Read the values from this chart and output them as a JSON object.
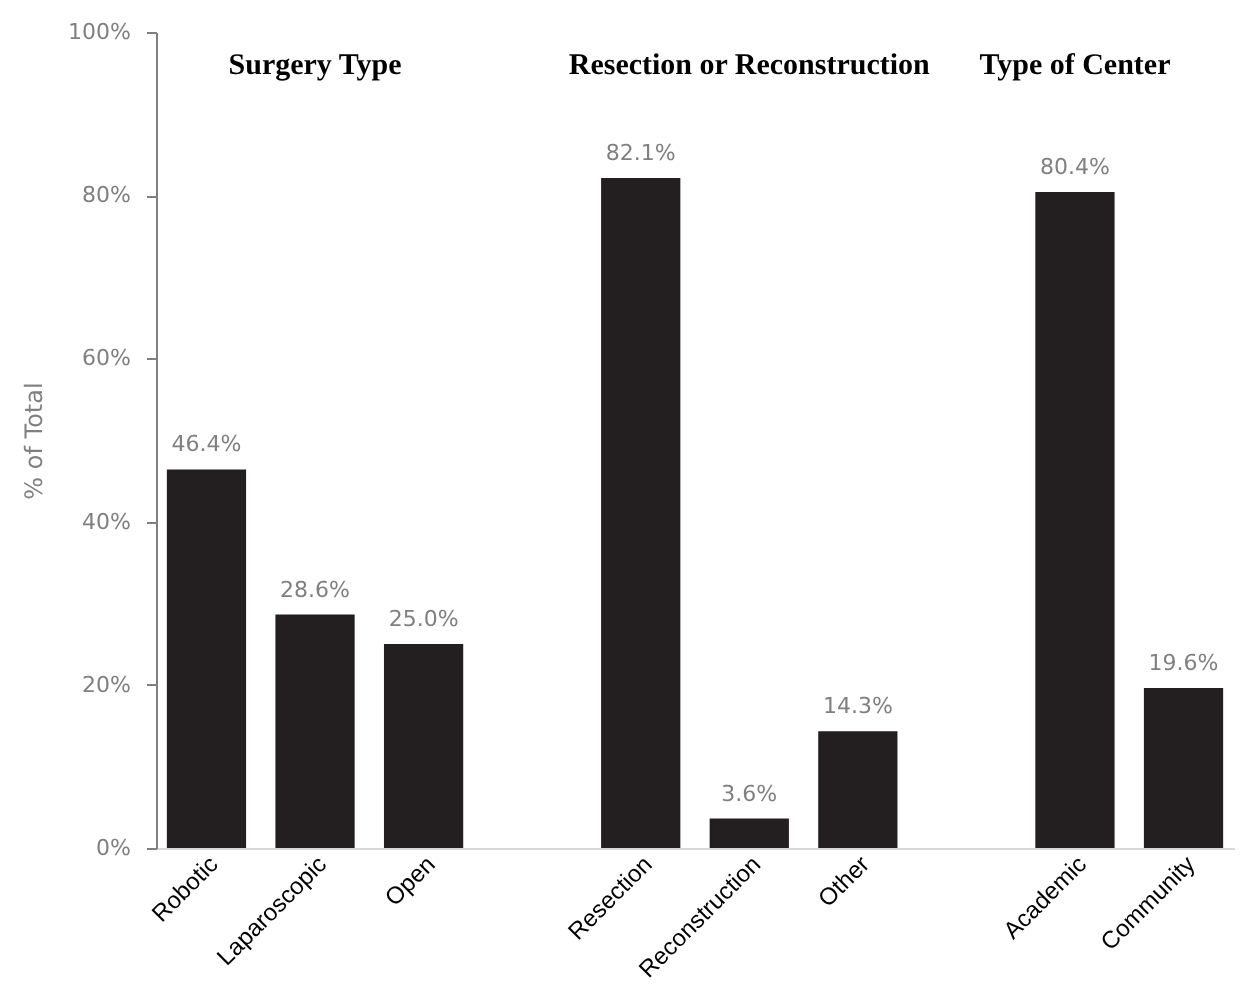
{
  "chart_data": {
    "type": "bar",
    "ylabel": "% of Total",
    "categories": [
      "Robotic",
      "Laparoscopic",
      "Open",
      null,
      "Resection",
      "Reconstruction",
      "Other",
      null,
      "Academic",
      "Community"
    ],
    "values": [
      46.4,
      28.6,
      25.0,
      null,
      82.1,
      3.6,
      14.3,
      null,
      80.4,
      19.6
    ],
    "value_labels": [
      "46.4%",
      "28.6%",
      "25.0%",
      null,
      "82.1%",
      "3.6%",
      "14.3%",
      null,
      "80.4%",
      "19.6%"
    ],
    "color": "#231f20",
    "ylim": [
      0,
      100
    ],
    "yticks": [
      {
        "value": 0,
        "label": "0%"
      },
      {
        "value": 20,
        "label": "20%"
      },
      {
        "value": 40,
        "label": "40%"
      },
      {
        "value": 60,
        "label": "60%"
      },
      {
        "value": 80,
        "label": "80%"
      },
      {
        "value": 100,
        "label": "100%"
      }
    ],
    "annotations": [
      "Surgery Type",
      "Resection or Reconstruction",
      "Type of Center"
    ],
    "grid": false
  }
}
